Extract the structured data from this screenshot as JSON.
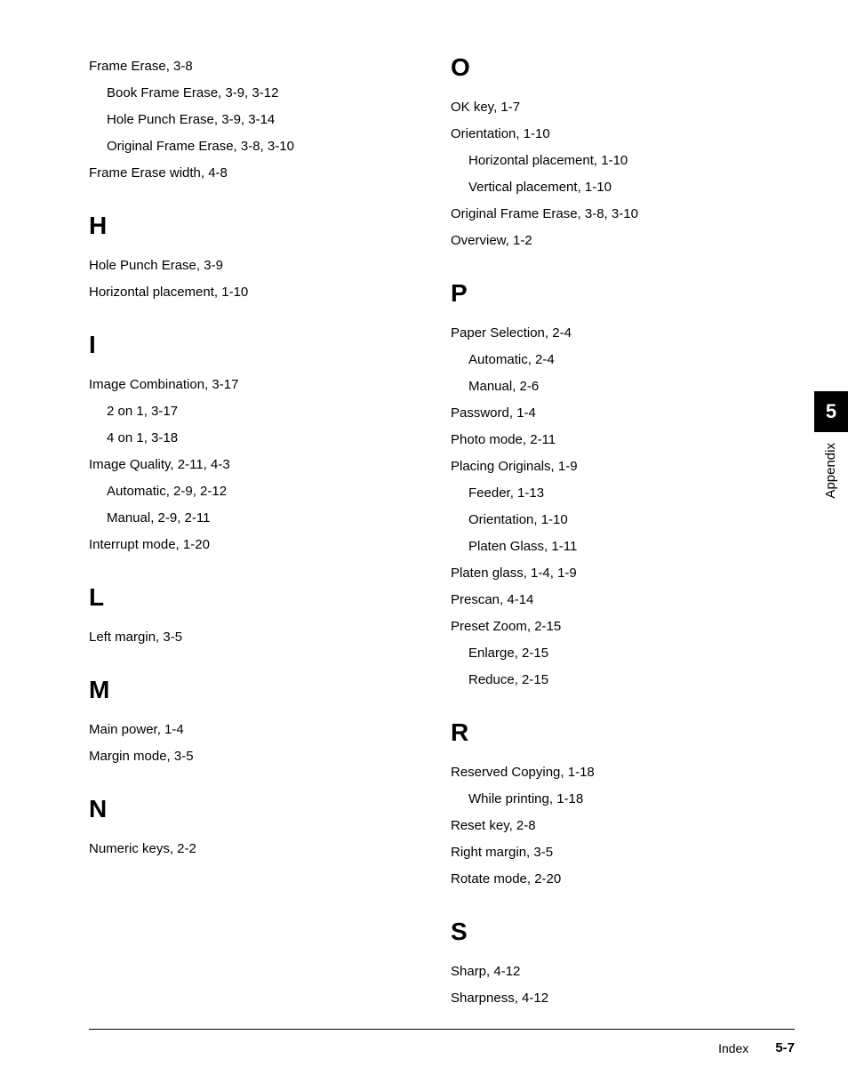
{
  "left_col": {
    "pre_entries": [
      {
        "text": "Frame Erase, 3-8",
        "indent": 0
      },
      {
        "text": "Book Frame Erase, 3-9, 3-12",
        "indent": 1
      },
      {
        "text": "Hole Punch Erase, 3-9, 3-14",
        "indent": 1
      },
      {
        "text": "Original Frame Erase, 3-8, 3-10",
        "indent": 1
      },
      {
        "text": "Frame Erase width, 4-8",
        "indent": 0
      }
    ],
    "sections": [
      {
        "heading": "H",
        "entries": [
          {
            "text": "Hole Punch Erase, 3-9",
            "indent": 0
          },
          {
            "text": "Horizontal placement, 1-10",
            "indent": 0
          }
        ]
      },
      {
        "heading": "I",
        "entries": [
          {
            "text": "Image Combination, 3-17",
            "indent": 0
          },
          {
            "text": "2 on 1, 3-17",
            "indent": 1
          },
          {
            "text": "4 on 1, 3-18",
            "indent": 1
          },
          {
            "text": "Image Quality, 2-11, 4-3",
            "indent": 0
          },
          {
            "text": "Automatic, 2-9, 2-12",
            "indent": 1
          },
          {
            "text": "Manual, 2-9, 2-11",
            "indent": 1
          },
          {
            "text": "Interrupt mode, 1-20",
            "indent": 0
          }
        ]
      },
      {
        "heading": "L",
        "entries": [
          {
            "text": "Left margin, 3-5",
            "indent": 0
          }
        ]
      },
      {
        "heading": "M",
        "entries": [
          {
            "text": "Main power, 1-4",
            "indent": 0
          },
          {
            "text": "Margin mode, 3-5",
            "indent": 0
          }
        ]
      },
      {
        "heading": "N",
        "entries": [
          {
            "text": "Numeric keys, 2-2",
            "indent": 0
          }
        ]
      }
    ]
  },
  "right_col": {
    "sections": [
      {
        "heading": "O",
        "entries": [
          {
            "text": "OK key, 1-7",
            "indent": 0
          },
          {
            "text": "Orientation, 1-10",
            "indent": 0
          },
          {
            "text": "Horizontal placement, 1-10",
            "indent": 1
          },
          {
            "text": "Vertical placement, 1-10",
            "indent": 1
          },
          {
            "text": "Original Frame Erase, 3-8, 3-10",
            "indent": 0
          },
          {
            "text": "Overview, 1-2",
            "indent": 0
          }
        ]
      },
      {
        "heading": "P",
        "entries": [
          {
            "text": "Paper Selection, 2-4",
            "indent": 0
          },
          {
            "text": "Automatic, 2-4",
            "indent": 1
          },
          {
            "text": "Manual, 2-6",
            "indent": 1
          },
          {
            "text": "Password, 1-4",
            "indent": 0
          },
          {
            "text": "Photo mode, 2-11",
            "indent": 0
          },
          {
            "text": "Placing Originals, 1-9",
            "indent": 0
          },
          {
            "text": "Feeder, 1-13",
            "indent": 1
          },
          {
            "text": "Orientation, 1-10",
            "indent": 1
          },
          {
            "text": "Platen Glass, 1-11",
            "indent": 1
          },
          {
            "text": "Platen glass, 1-4, 1-9",
            "indent": 0
          },
          {
            "text": "Prescan, 4-14",
            "indent": 0
          },
          {
            "text": "Preset Zoom, 2-15",
            "indent": 0
          },
          {
            "text": "Enlarge, 2-15",
            "indent": 1
          },
          {
            "text": "Reduce, 2-15",
            "indent": 1
          }
        ]
      },
      {
        "heading": "R",
        "entries": [
          {
            "text": "Reserved Copying, 1-18",
            "indent": 0
          },
          {
            "text": "While printing, 1-18",
            "indent": 1
          },
          {
            "text": "Reset key, 2-8",
            "indent": 0
          },
          {
            "text": "Right margin, 3-5",
            "indent": 0
          },
          {
            "text": "Rotate mode, 2-20",
            "indent": 0
          }
        ]
      },
      {
        "heading": "S",
        "entries": [
          {
            "text": "Sharp, 4-12",
            "indent": 0
          },
          {
            "text": "Sharpness, 4-12",
            "indent": 0
          }
        ]
      }
    ]
  },
  "side_tab": {
    "number": "5",
    "label": "Appendix"
  },
  "footer": {
    "title": "Index",
    "page": "5-7"
  }
}
